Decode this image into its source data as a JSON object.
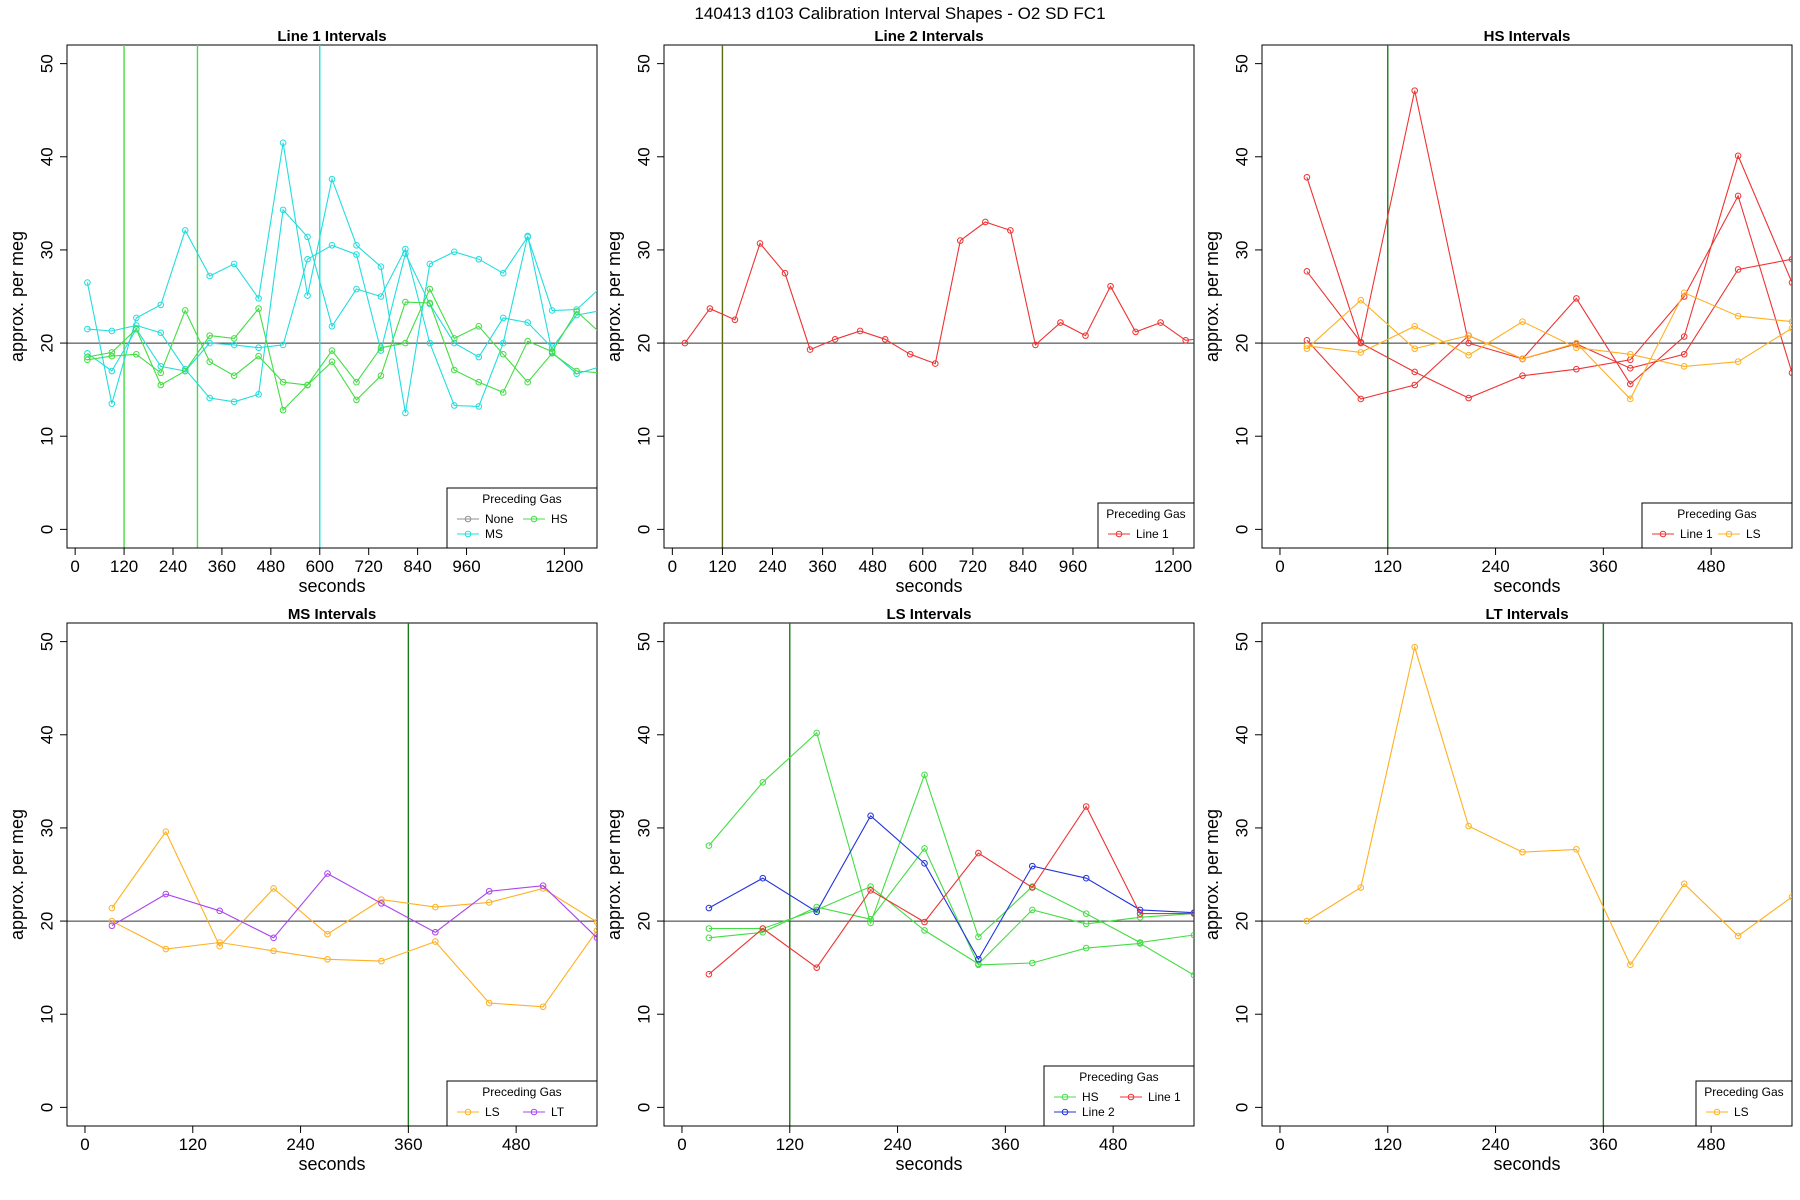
{
  "figure": {
    "title": "140413   d103   Calibration Interval Shapes - O2 SD FC1"
  },
  "legend_title": "Preceding Gas",
  "colors": {
    "None": "#909090",
    "HS": "#44dd44",
    "MS": "#22dddd",
    "Line 1": "#ee3333",
    "Line 2": "#2233dd",
    "LS": "#ffb020",
    "LT": "#aa44ee"
  },
  "chart_data": [
    {
      "type": "line",
      "title": "Line 1 Intervals",
      "xlabel": "seconds",
      "ylabel": "approx. per meg",
      "xlim": [
        -20,
        1280
      ],
      "ylim": [
        -2,
        52
      ],
      "xticks": [
        "0",
        "120",
        "240",
        "360",
        "480",
        "600",
        "720",
        "840",
        "960",
        "1200"
      ],
      "xtick_values": [
        0,
        120,
        240,
        360,
        480,
        600,
        720,
        840,
        960,
        1200
      ],
      "yticks": [
        "0",
        "10",
        "20",
        "30",
        "40",
        "50"
      ],
      "ytick_values": [
        0,
        10,
        20,
        30,
        40,
        50
      ],
      "hline": 20,
      "vlines": [
        {
          "x": 120,
          "gas": "HS"
        },
        {
          "x": 300,
          "gas": "HS"
        },
        {
          "x": 600,
          "gas": "MS"
        }
      ],
      "legend": {
        "position": "bottom-right",
        "ncol": 2,
        "entries": [
          "None",
          "HS",
          "MS"
        ]
      },
      "series": [
        {
          "gas": "MS",
          "x": [
            30,
            90,
            150,
            210,
            270,
            330,
            390,
            450,
            510,
            570,
            630,
            690,
            750,
            810,
            870,
            930,
            990,
            1050,
            1110,
            1170,
            1230,
            1290
          ],
          "y": [
            26.5,
            13.5,
            22.7,
            24.1,
            32.1,
            27.2,
            28.5,
            24.8,
            41.5,
            25.1,
            37.6,
            30.5,
            28.2,
            12.5,
            28.5,
            29.8,
            29.0,
            27.5,
            31.4,
            23.5,
            23.6,
            26.0
          ]
        },
        {
          "gas": "MS",
          "x": [
            30,
            90,
            150,
            210,
            270,
            330,
            390,
            450,
            510,
            570,
            630,
            690,
            750,
            810,
            870,
            930,
            990,
            1050,
            1110,
            1170,
            1230,
            1290
          ],
          "y": [
            21.5,
            21.3,
            21.9,
            21.1,
            17.2,
            14.1,
            13.7,
            14.5,
            34.3,
            31.4,
            21.8,
            25.8,
            25.0,
            30.1,
            20.0,
            13.3,
            13.2,
            20.0,
            31.5,
            19.0,
            16.7,
            17.5
          ]
        },
        {
          "gas": "MS",
          "x": [
            30,
            90,
            150,
            210,
            270,
            330,
            390,
            450,
            510,
            570,
            630,
            690,
            750,
            810,
            870,
            930,
            990,
            1050,
            1110,
            1170,
            1230,
            1290
          ],
          "y": [
            18.9,
            17.0,
            21.5,
            17.5,
            17.0,
            20.0,
            19.8,
            19.5,
            19.8,
            29.0,
            30.5,
            29.5,
            19.2,
            29.6,
            24.2,
            20.0,
            18.5,
            22.7,
            22.2,
            19.5,
            23.0,
            23.5
          ]
        },
        {
          "gas": "HS",
          "x": [
            30,
            90,
            150,
            210,
            270,
            330,
            390,
            450,
            510,
            570,
            630,
            690,
            750,
            810,
            870,
            930,
            990,
            1050,
            1110,
            1170,
            1230,
            1290
          ],
          "y": [
            18.5,
            19.0,
            21.5,
            15.5,
            17.0,
            20.8,
            20.5,
            23.7,
            12.8,
            15.5,
            18.0,
            13.9,
            16.5,
            24.4,
            24.3,
            17.1,
            15.8,
            14.7,
            20.2,
            19.1,
            23.4,
            21.0
          ]
        },
        {
          "gas": "HS",
          "x": [
            30,
            90,
            150,
            210,
            270,
            330,
            390,
            450,
            510,
            570,
            630,
            690,
            750,
            810,
            870,
            930,
            990,
            1050,
            1110,
            1170,
            1230,
            1290
          ],
          "y": [
            18.2,
            18.6,
            18.8,
            16.8,
            23.5,
            18.0,
            16.5,
            18.6,
            15.8,
            15.5,
            19.2,
            15.8,
            19.5,
            20.0,
            25.8,
            20.5,
            21.8,
            18.8,
            15.8,
            18.9,
            17.0,
            16.8
          ]
        }
      ]
    },
    {
      "type": "line",
      "title": "Line 2 Intervals",
      "xlabel": "seconds",
      "ylabel": "approx. per meg",
      "xlim": [
        -20,
        1250
      ],
      "ylim": [
        -2,
        52
      ],
      "xticks": [
        "0",
        "120",
        "240",
        "360",
        "480",
        "600",
        "720",
        "840",
        "960",
        "1200"
      ],
      "xtick_values": [
        0,
        120,
        240,
        360,
        480,
        600,
        720,
        840,
        960,
        1200
      ],
      "yticks": [
        "0",
        "10",
        "20",
        "30",
        "40",
        "50"
      ],
      "ytick_values": [
        0,
        10,
        20,
        30,
        40,
        50
      ],
      "hline": 20,
      "vlines": [
        {
          "x": 120,
          "gas": "olive"
        }
      ],
      "legend": {
        "position": "bottom-right",
        "ncol": 1,
        "entries": [
          "Line 1"
        ]
      },
      "series": [
        {
          "gas": "Line 1",
          "x": [
            30,
            90,
            150,
            210,
            270,
            330,
            390,
            450,
            510,
            570,
            630,
            690,
            750,
            810,
            870,
            930,
            990,
            1050,
            1110,
            1170,
            1230,
            1290
          ],
          "y": [
            20.0,
            23.7,
            22.5,
            30.7,
            27.5,
            19.3,
            20.4,
            21.3,
            20.4,
            18.8,
            17.8,
            31.0,
            33.0,
            32.1,
            19.8,
            22.2,
            20.8,
            26.1,
            21.2,
            22.2,
            20.3,
            20.6
          ]
        }
      ]
    },
    {
      "type": "line",
      "title": "HS Intervals",
      "xlabel": "seconds",
      "ylabel": "approx. per meg",
      "xlim": [
        -20,
        570
      ],
      "ylim": [
        -2,
        52
      ],
      "xticks": [
        "0",
        "120",
        "240",
        "360",
        "480"
      ],
      "xtick_values": [
        0,
        120,
        240,
        360,
        480
      ],
      "yticks": [
        "0",
        "10",
        "20",
        "30",
        "40",
        "50"
      ],
      "ytick_values": [
        0,
        10,
        20,
        30,
        40,
        50
      ],
      "hline": 20,
      "vlines": [
        {
          "x": 120,
          "gas": "darkgreen"
        }
      ],
      "legend": {
        "position": "bottom-right",
        "ncol": 2,
        "entries": [
          "Line 1",
          "LS"
        ]
      },
      "series": [
        {
          "gas": "Line 1",
          "x": [
            30,
            90,
            150,
            210,
            270,
            330,
            390,
            450,
            510,
            570
          ],
          "y": [
            37.8,
            20.0,
            16.9,
            14.1,
            16.5,
            17.2,
            18.2,
            25.0,
            35.8,
            16.8
          ]
        },
        {
          "gas": "Line 1",
          "x": [
            30,
            90,
            150,
            210,
            270,
            330,
            390,
            450,
            510,
            570
          ],
          "y": [
            27.7,
            20.1,
            47.1,
            20.0,
            18.3,
            24.8,
            15.6,
            20.7,
            40.1,
            26.5
          ]
        },
        {
          "gas": "Line 1",
          "x": [
            30,
            90,
            150,
            210,
            270,
            330,
            390,
            450,
            510,
            570
          ],
          "y": [
            20.3,
            14.0,
            15.5,
            20.8,
            18.3,
            19.9,
            17.3,
            18.8,
            27.9,
            29.0
          ]
        },
        {
          "gas": "LS",
          "x": [
            30,
            90,
            150,
            210,
            270,
            330,
            390,
            450,
            510,
            570
          ],
          "y": [
            19.4,
            24.6,
            19.4,
            20.8,
            18.3,
            20.0,
            14.0,
            25.4,
            22.9,
            22.3
          ]
        },
        {
          "gas": "LS",
          "x": [
            30,
            90,
            150,
            210,
            270,
            330,
            390,
            450,
            510,
            570
          ],
          "y": [
            19.7,
            19.0,
            21.8,
            18.7,
            22.3,
            19.5,
            18.8,
            17.5,
            18.0,
            21.6
          ]
        }
      ]
    },
    {
      "type": "line",
      "title": "MS Intervals",
      "xlabel": "seconds",
      "ylabel": "approx. per meg",
      "xlim": [
        -20,
        570
      ],
      "ylim": [
        -2,
        52
      ],
      "xticks": [
        "0",
        "120",
        "240",
        "360",
        "480"
      ],
      "xtick_values": [
        0,
        120,
        240,
        360,
        480
      ],
      "yticks": [
        "0",
        "10",
        "20",
        "30",
        "40",
        "50"
      ],
      "ytick_values": [
        0,
        10,
        20,
        30,
        40,
        50
      ],
      "hline": 20,
      "vlines": [
        {
          "x": 360,
          "gas": "darkgreen"
        }
      ],
      "legend": {
        "position": "bottom-right",
        "ncol": 2,
        "entries": [
          "LS",
          "LT"
        ]
      },
      "series": [
        {
          "gas": "LS",
          "x": [
            30,
            90,
            150,
            210,
            270,
            330,
            390,
            450,
            510,
            570
          ],
          "y": [
            21.4,
            29.6,
            17.3,
            23.5,
            18.6,
            22.3,
            21.5,
            22.0,
            23.5,
            19.9
          ]
        },
        {
          "gas": "LS",
          "x": [
            30,
            90,
            150,
            210,
            270,
            330,
            390,
            450,
            510,
            570
          ],
          "y": [
            20.0,
            17.0,
            17.7,
            16.8,
            15.9,
            15.7,
            17.8,
            11.2,
            10.8,
            19.0
          ]
        },
        {
          "gas": "LT",
          "x": [
            30,
            90,
            150,
            210,
            270,
            330,
            390,
            450,
            510,
            570
          ],
          "y": [
            19.5,
            22.9,
            21.1,
            18.2,
            25.1,
            21.9,
            18.8,
            23.2,
            23.8,
            18.2
          ]
        }
      ]
    },
    {
      "type": "line",
      "title": "LS Intervals",
      "xlabel": "seconds",
      "ylabel": "approx. per meg",
      "xlim": [
        -20,
        570
      ],
      "ylim": [
        -2,
        52
      ],
      "xticks": [
        "0",
        "120",
        "240",
        "360",
        "480"
      ],
      "xtick_values": [
        0,
        120,
        240,
        360,
        480
      ],
      "yticks": [
        "0",
        "10",
        "20",
        "30",
        "40",
        "50"
      ],
      "ytick_values": [
        0,
        10,
        20,
        30,
        40,
        50
      ],
      "hline": 20,
      "vlines": [
        {
          "x": 120,
          "gas": "darkgreen"
        }
      ],
      "legend": {
        "position": "bottom-right",
        "ncol": 2,
        "entries": [
          "HS",
          "Line 1",
          "Line 2"
        ]
      },
      "series": [
        {
          "gas": "HS",
          "x": [
            30,
            90,
            150,
            210,
            270,
            330,
            390,
            450,
            510,
            570
          ],
          "y": [
            28.1,
            34.9,
            40.2,
            19.8,
            35.7,
            18.3,
            23.7,
            20.8,
            17.7,
            18.5
          ]
        },
        {
          "gas": "HS",
          "x": [
            30,
            90,
            150,
            210,
            270,
            330,
            390,
            450,
            510,
            570
          ],
          "y": [
            19.2,
            19.2,
            21.2,
            23.7,
            19.0,
            15.4,
            21.2,
            19.7,
            20.4,
            20.8
          ]
        },
        {
          "gas": "HS",
          "x": [
            30,
            90,
            150,
            210,
            270,
            330,
            390,
            450,
            510,
            570
          ],
          "y": [
            18.2,
            18.8,
            21.5,
            20.2,
            27.8,
            15.3,
            15.5,
            17.1,
            17.6,
            14.2
          ]
        },
        {
          "gas": "Line 2",
          "x": [
            30,
            90,
            150,
            210,
            270,
            330,
            390,
            450,
            510,
            570
          ],
          "y": [
            21.4,
            24.6,
            21.0,
            31.3,
            26.2,
            15.9,
            25.9,
            24.6,
            21.2,
            20.9
          ]
        },
        {
          "gas": "Line 1",
          "x": [
            30,
            90,
            150,
            210,
            270,
            330,
            390,
            450,
            510,
            570
          ],
          "y": [
            14.3,
            19.2,
            15.0,
            23.3,
            19.9,
            27.3,
            23.6,
            32.3,
            20.8,
            20.8
          ]
        }
      ]
    },
    {
      "type": "line",
      "title": "LT Intervals",
      "xlabel": "seconds",
      "ylabel": "approx. per meg",
      "xlim": [
        -20,
        570
      ],
      "ylim": [
        -2,
        52
      ],
      "xticks": [
        "0",
        "120",
        "240",
        "360",
        "480"
      ],
      "xtick_values": [
        0,
        120,
        240,
        360,
        480
      ],
      "yticks": [
        "0",
        "10",
        "20",
        "30",
        "40",
        "50"
      ],
      "ytick_values": [
        0,
        10,
        20,
        30,
        40,
        50
      ],
      "hline": 20,
      "vlines": [
        {
          "x": 360,
          "gas": "darkgreen"
        }
      ],
      "legend": {
        "position": "bottom-right",
        "ncol": 1,
        "entries": [
          "LS"
        ]
      },
      "series": [
        {
          "gas": "LS",
          "x": [
            30,
            90,
            150,
            210,
            270,
            330,
            390,
            450,
            510,
            570
          ],
          "y": [
            20.0,
            23.6,
            49.4,
            30.2,
            27.4,
            27.7,
            15.3,
            24.0,
            18.4,
            22.6
          ]
        }
      ]
    }
  ]
}
